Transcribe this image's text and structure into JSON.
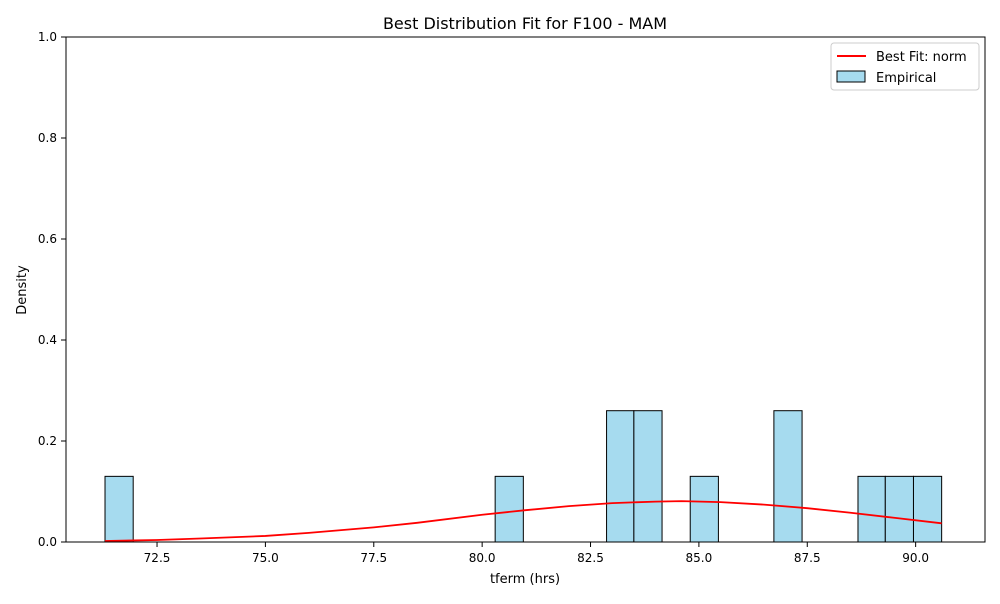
{
  "chart_data": {
    "type": "bar",
    "title": "Best Distribution Fit for F100 - MAM",
    "xlabel": "tferm (hrs)",
    "ylabel": "Density",
    "xlim": [
      70.4,
      91.6
    ],
    "ylim": [
      0,
      1
    ],
    "grid": false,
    "legend_position": "top-right",
    "x_ticks": [
      72.5,
      75.0,
      77.5,
      80.0,
      82.5,
      85.0,
      87.5,
      90.0
    ],
    "x_tick_labels": [
      "72.5",
      "75.0",
      "77.5",
      "80.0",
      "82.5",
      "85.0",
      "87.5",
      "90.0"
    ],
    "y_ticks": [
      0.0,
      0.2,
      0.4,
      0.6,
      0.8,
      1.0
    ],
    "y_tick_labels": [
      "0.0",
      "0.2",
      "0.4",
      "0.6",
      "0.8",
      "1.0"
    ],
    "histogram": {
      "name": "Empirical",
      "color": "#a6dbef",
      "edge_color": "#000000",
      "bins": [
        {
          "x0": 71.3,
          "x1": 71.95,
          "density": 0.13
        },
        {
          "x0": 80.3,
          "x1": 80.95,
          "density": 0.13
        },
        {
          "x0": 82.87,
          "x1": 83.5,
          "density": 0.26
        },
        {
          "x0": 83.5,
          "x1": 84.15,
          "density": 0.26
        },
        {
          "x0": 84.8,
          "x1": 85.45,
          "density": 0.13
        },
        {
          "x0": 86.73,
          "x1": 87.38,
          "density": 0.26
        },
        {
          "x0": 88.67,
          "x1": 89.3,
          "density": 0.13
        },
        {
          "x0": 89.3,
          "x1": 89.95,
          "density": 0.13
        },
        {
          "x0": 89.95,
          "x1": 90.6,
          "density": 0.13
        }
      ]
    },
    "fit": {
      "name": "Best Fit: norm",
      "color": "#ff0000",
      "distribution": "norm",
      "x": [
        71.3,
        72.5,
        73.5,
        75.0,
        76.0,
        77.5,
        78.5,
        80.0,
        81.0,
        82.0,
        83.0,
        84.0,
        84.6,
        85.5,
        86.5,
        87.5,
        88.5,
        89.5,
        90.6
      ],
      "y": [
        0.002,
        0.004,
        0.007,
        0.012,
        0.018,
        0.029,
        0.038,
        0.054,
        0.063,
        0.071,
        0.077,
        0.08,
        0.081,
        0.079,
        0.074,
        0.067,
        0.058,
        0.048,
        0.037
      ]
    }
  }
}
